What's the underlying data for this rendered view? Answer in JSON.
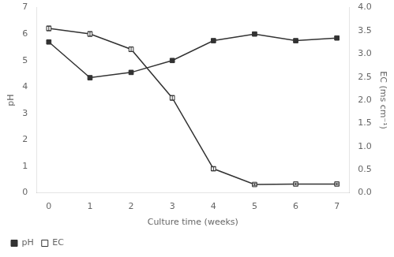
{
  "chart_data": {
    "type": "line",
    "x": [
      0,
      1,
      2,
      3,
      4,
      5,
      6,
      7
    ],
    "xlabel": "Culture time (weeks)",
    "ylabel": "pH",
    "y2label": "EC (ms cm⁻¹)",
    "xlim": [
      -0.3,
      7.3
    ],
    "xticks": [
      0,
      1,
      2,
      3,
      4,
      5,
      6,
      7
    ],
    "ylim": [
      0.0,
      7.0
    ],
    "yticks": [
      0,
      1,
      2,
      3,
      4,
      5,
      6,
      7
    ],
    "y2lim": [
      0.0,
      4.0
    ],
    "y2ticks": [
      {
        "value": 0,
        "label": "0.0"
      },
      0.5,
      {
        "value": 1,
        "label": "1.0"
      },
      1.5,
      {
        "value": 2,
        "label": "2.0"
      },
      2.5,
      {
        "value": 3,
        "label": "3.0"
      },
      3.5,
      {
        "value": 4,
        "label": "4.0"
      }
    ],
    "grid": false,
    "legend": "lower left",
    "series": [
      {
        "name": "pH",
        "color": "#333333",
        "marker": "square",
        "values": [
          5.7,
          4.35,
          4.55,
          5.0,
          5.75,
          6.0,
          5.75,
          5.85
        ],
        "errors": [
          0.05,
          0.05,
          0.05,
          0.05,
          0.05,
          0.05,
          0.05,
          0.05
        ]
      },
      {
        "name": "EC",
        "axis": "y2",
        "color": "#333333",
        "marker": "square-open",
        "values": [
          3.55,
          3.43,
          3.1,
          2.05,
          0.52,
          0.18,
          0.19,
          0.19
        ],
        "errors": [
          0.05,
          0.05,
          0.05,
          0.05,
          0.04,
          0.02,
          0.02,
          0.02
        ]
      }
    ]
  }
}
